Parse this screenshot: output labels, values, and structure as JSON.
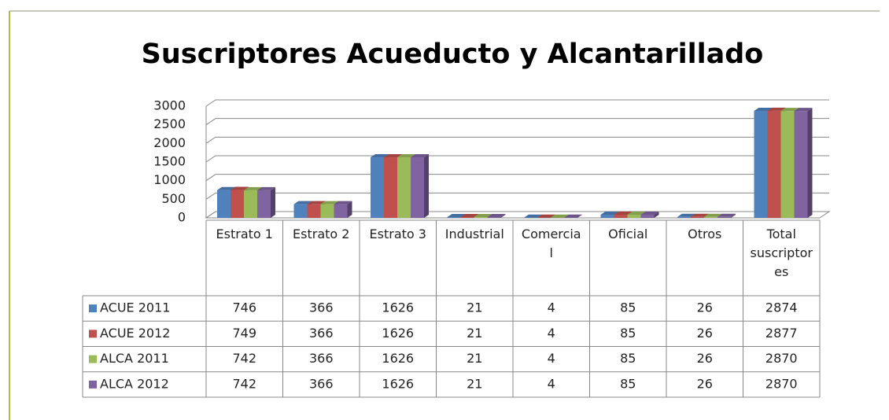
{
  "chart_data": {
    "type": "bar3d",
    "title": "Suscriptores Acueducto y Alcantarillado",
    "categories": [
      "Estrato 1",
      "Estrato 2",
      "Estrato 3",
      "Industrial",
      "Comercial",
      "Oficial",
      "Otros",
      "Total suscriptores"
    ],
    "series": [
      {
        "name": "ACUE 2011",
        "color": "#4f81bd",
        "values": [
          746,
          366,
          1626,
          21,
          4,
          85,
          26,
          2874
        ]
      },
      {
        "name": "ACUE 2012",
        "color": "#c0504d",
        "values": [
          749,
          366,
          1626,
          21,
          4,
          85,
          26,
          2877
        ]
      },
      {
        "name": "ALCA 2011",
        "color": "#9bbb59",
        "values": [
          742,
          366,
          1626,
          21,
          4,
          85,
          26,
          2870
        ]
      },
      {
        "name": "ALCA 2012",
        "color": "#8064a2",
        "values": [
          742,
          366,
          1626,
          21,
          4,
          85,
          26,
          2870
        ]
      }
    ],
    "ylim": [
      0,
      3000
    ],
    "yticks": [
      0,
      500,
      1000,
      1500,
      2000,
      2500,
      3000
    ],
    "grid": true,
    "data_table": true
  }
}
